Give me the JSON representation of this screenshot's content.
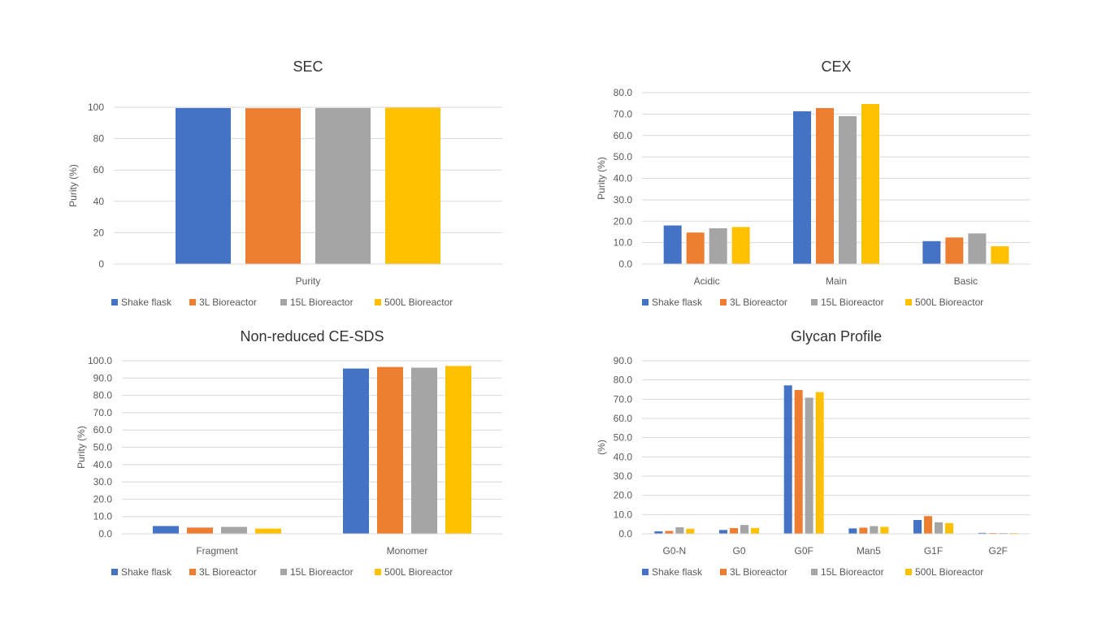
{
  "legend_labels": [
    "Shake flask",
    "3L Bioreactor",
    "15L Bioreactor",
    "500L Bioreactor"
  ],
  "colors": [
    "#4472C4",
    "#ED7D31",
    "#A5A5A5",
    "#FFC000"
  ],
  "chart_data": [
    {
      "type": "bar",
      "title": "SEC",
      "ylabel": "Purity (%)",
      "categories": [
        "Purity"
      ],
      "ylim": [
        0,
        100
      ],
      "yticks": [
        0,
        20,
        40,
        60,
        80,
        100
      ],
      "tick_decimals": 0,
      "legend": "bottom",
      "grid": true,
      "series": [
        {
          "name": "Shake flask",
          "values": [
            99.5
          ]
        },
        {
          "name": "3L Bioreactor",
          "values": [
            99.4
          ]
        },
        {
          "name": "15L Bioreactor",
          "values": [
            99.5
          ]
        },
        {
          "name": "500L Bioreactor",
          "values": [
            99.7
          ]
        }
      ]
    },
    {
      "type": "bar",
      "title": "CEX",
      "ylabel": "Purity (%)",
      "categories": [
        "Acidic",
        "Main",
        "Basic"
      ],
      "ylim": [
        0,
        80
      ],
      "yticks": [
        0,
        10,
        20,
        30,
        40,
        50,
        60,
        70,
        80
      ],
      "tick_decimals": 1,
      "legend": "bottom",
      "grid": true,
      "series": [
        {
          "name": "Shake flask",
          "values": [
            18.0,
            71.3,
            10.7
          ]
        },
        {
          "name": "3L Bioreactor",
          "values": [
            14.7,
            72.8,
            12.4
          ]
        },
        {
          "name": "15L Bioreactor",
          "values": [
            16.7,
            69.0,
            14.3
          ]
        },
        {
          "name": "500L Bioreactor",
          "values": [
            17.3,
            74.7,
            8.3
          ]
        }
      ]
    },
    {
      "type": "bar",
      "title": "Non-reduced CE-SDS",
      "ylabel": "Purity (%)",
      "categories": [
        "Fragment",
        "Monomer"
      ],
      "ylim": [
        0,
        100
      ],
      "yticks": [
        0,
        10,
        20,
        30,
        40,
        50,
        60,
        70,
        80,
        90,
        100
      ],
      "tick_decimals": 1,
      "legend": "bottom",
      "grid": true,
      "series": [
        {
          "name": "Shake flask",
          "values": [
            4.5,
            95.5
          ]
        },
        {
          "name": "3L Bioreactor",
          "values": [
            3.6,
            96.4
          ]
        },
        {
          "name": "15L Bioreactor",
          "values": [
            4.0,
            96.0
          ]
        },
        {
          "name": "500L Bioreactor",
          "values": [
            3.0,
            97.0
          ]
        }
      ]
    },
    {
      "type": "bar",
      "title": "Glycan Profile",
      "ylabel": "(%)",
      "categories": [
        "G0-N",
        "G0",
        "G0F",
        "Man5",
        "G1F",
        "G2F"
      ],
      "ylim": [
        0,
        90
      ],
      "yticks": [
        0,
        10,
        20,
        30,
        40,
        50,
        60,
        70,
        80,
        90
      ],
      "tick_decimals": 1,
      "legend": "bottom",
      "grid": true,
      "series": [
        {
          "name": "Shake flask",
          "values": [
            1.3,
            2.0,
            77.2,
            2.8,
            7.2,
            0.5
          ]
        },
        {
          "name": "3L Bioreactor",
          "values": [
            1.5,
            3.0,
            74.8,
            3.2,
            9.2,
            0.4
          ]
        },
        {
          "name": "15L Bioreactor",
          "values": [
            3.4,
            4.6,
            70.8,
            4.0,
            6.0,
            0.4
          ]
        },
        {
          "name": "500L Bioreactor",
          "values": [
            2.6,
            3.0,
            73.7,
            3.6,
            5.6,
            0.4
          ]
        }
      ]
    }
  ]
}
